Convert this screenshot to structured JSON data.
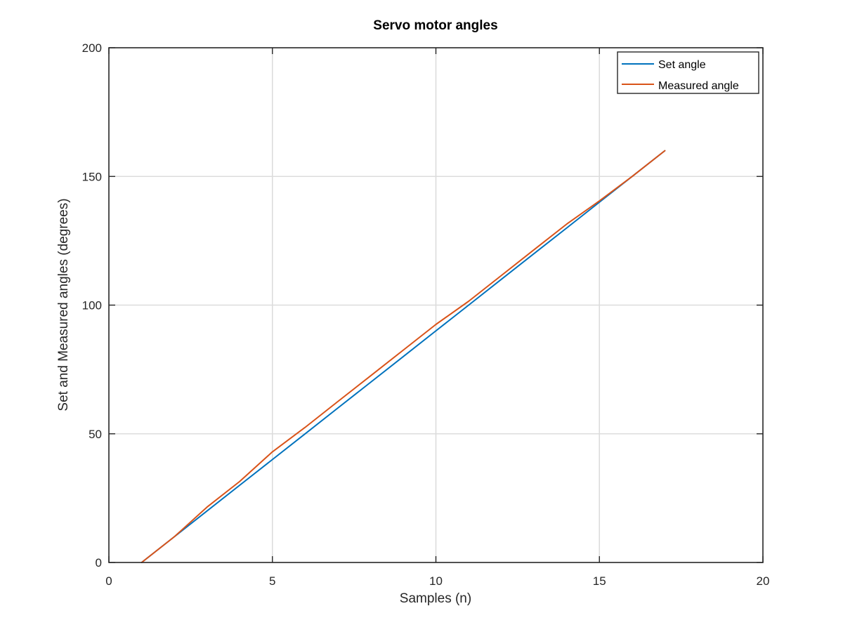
{
  "chart_data": {
    "type": "line",
    "title": "Servo motor angles",
    "xlabel": "Samples (n)",
    "ylabel": "Set and Measured angles (degrees)",
    "xlim": [
      0,
      20
    ],
    "ylim": [
      0,
      200
    ],
    "xticks": [
      0,
      5,
      10,
      15,
      20
    ],
    "yticks": [
      0,
      50,
      100,
      150,
      200
    ],
    "grid": true,
    "legend_position": "top-right",
    "series": [
      {
        "name": "Set angle",
        "color": "#0072BD",
        "x": [
          1,
          2,
          3,
          4,
          5,
          6,
          7,
          8,
          9,
          10,
          11,
          12,
          13,
          14,
          15,
          16,
          17
        ],
        "y": [
          0,
          10,
          20,
          30,
          40,
          50,
          60,
          70,
          80,
          90,
          100,
          110,
          120,
          130,
          140,
          150,
          160
        ]
      },
      {
        "name": "Measured angle",
        "color": "#D95319",
        "x": [
          1,
          2,
          3,
          4,
          5,
          6,
          7,
          8,
          9,
          10,
          11,
          12,
          13,
          14,
          15,
          16,
          17
        ],
        "y": [
          0,
          10,
          21.5,
          31.5,
          43,
          52.5,
          62.5,
          72.5,
          82.5,
          92.5,
          101.5,
          111.5,
          121.5,
          131.5,
          140.5,
          150,
          160
        ]
      }
    ]
  }
}
